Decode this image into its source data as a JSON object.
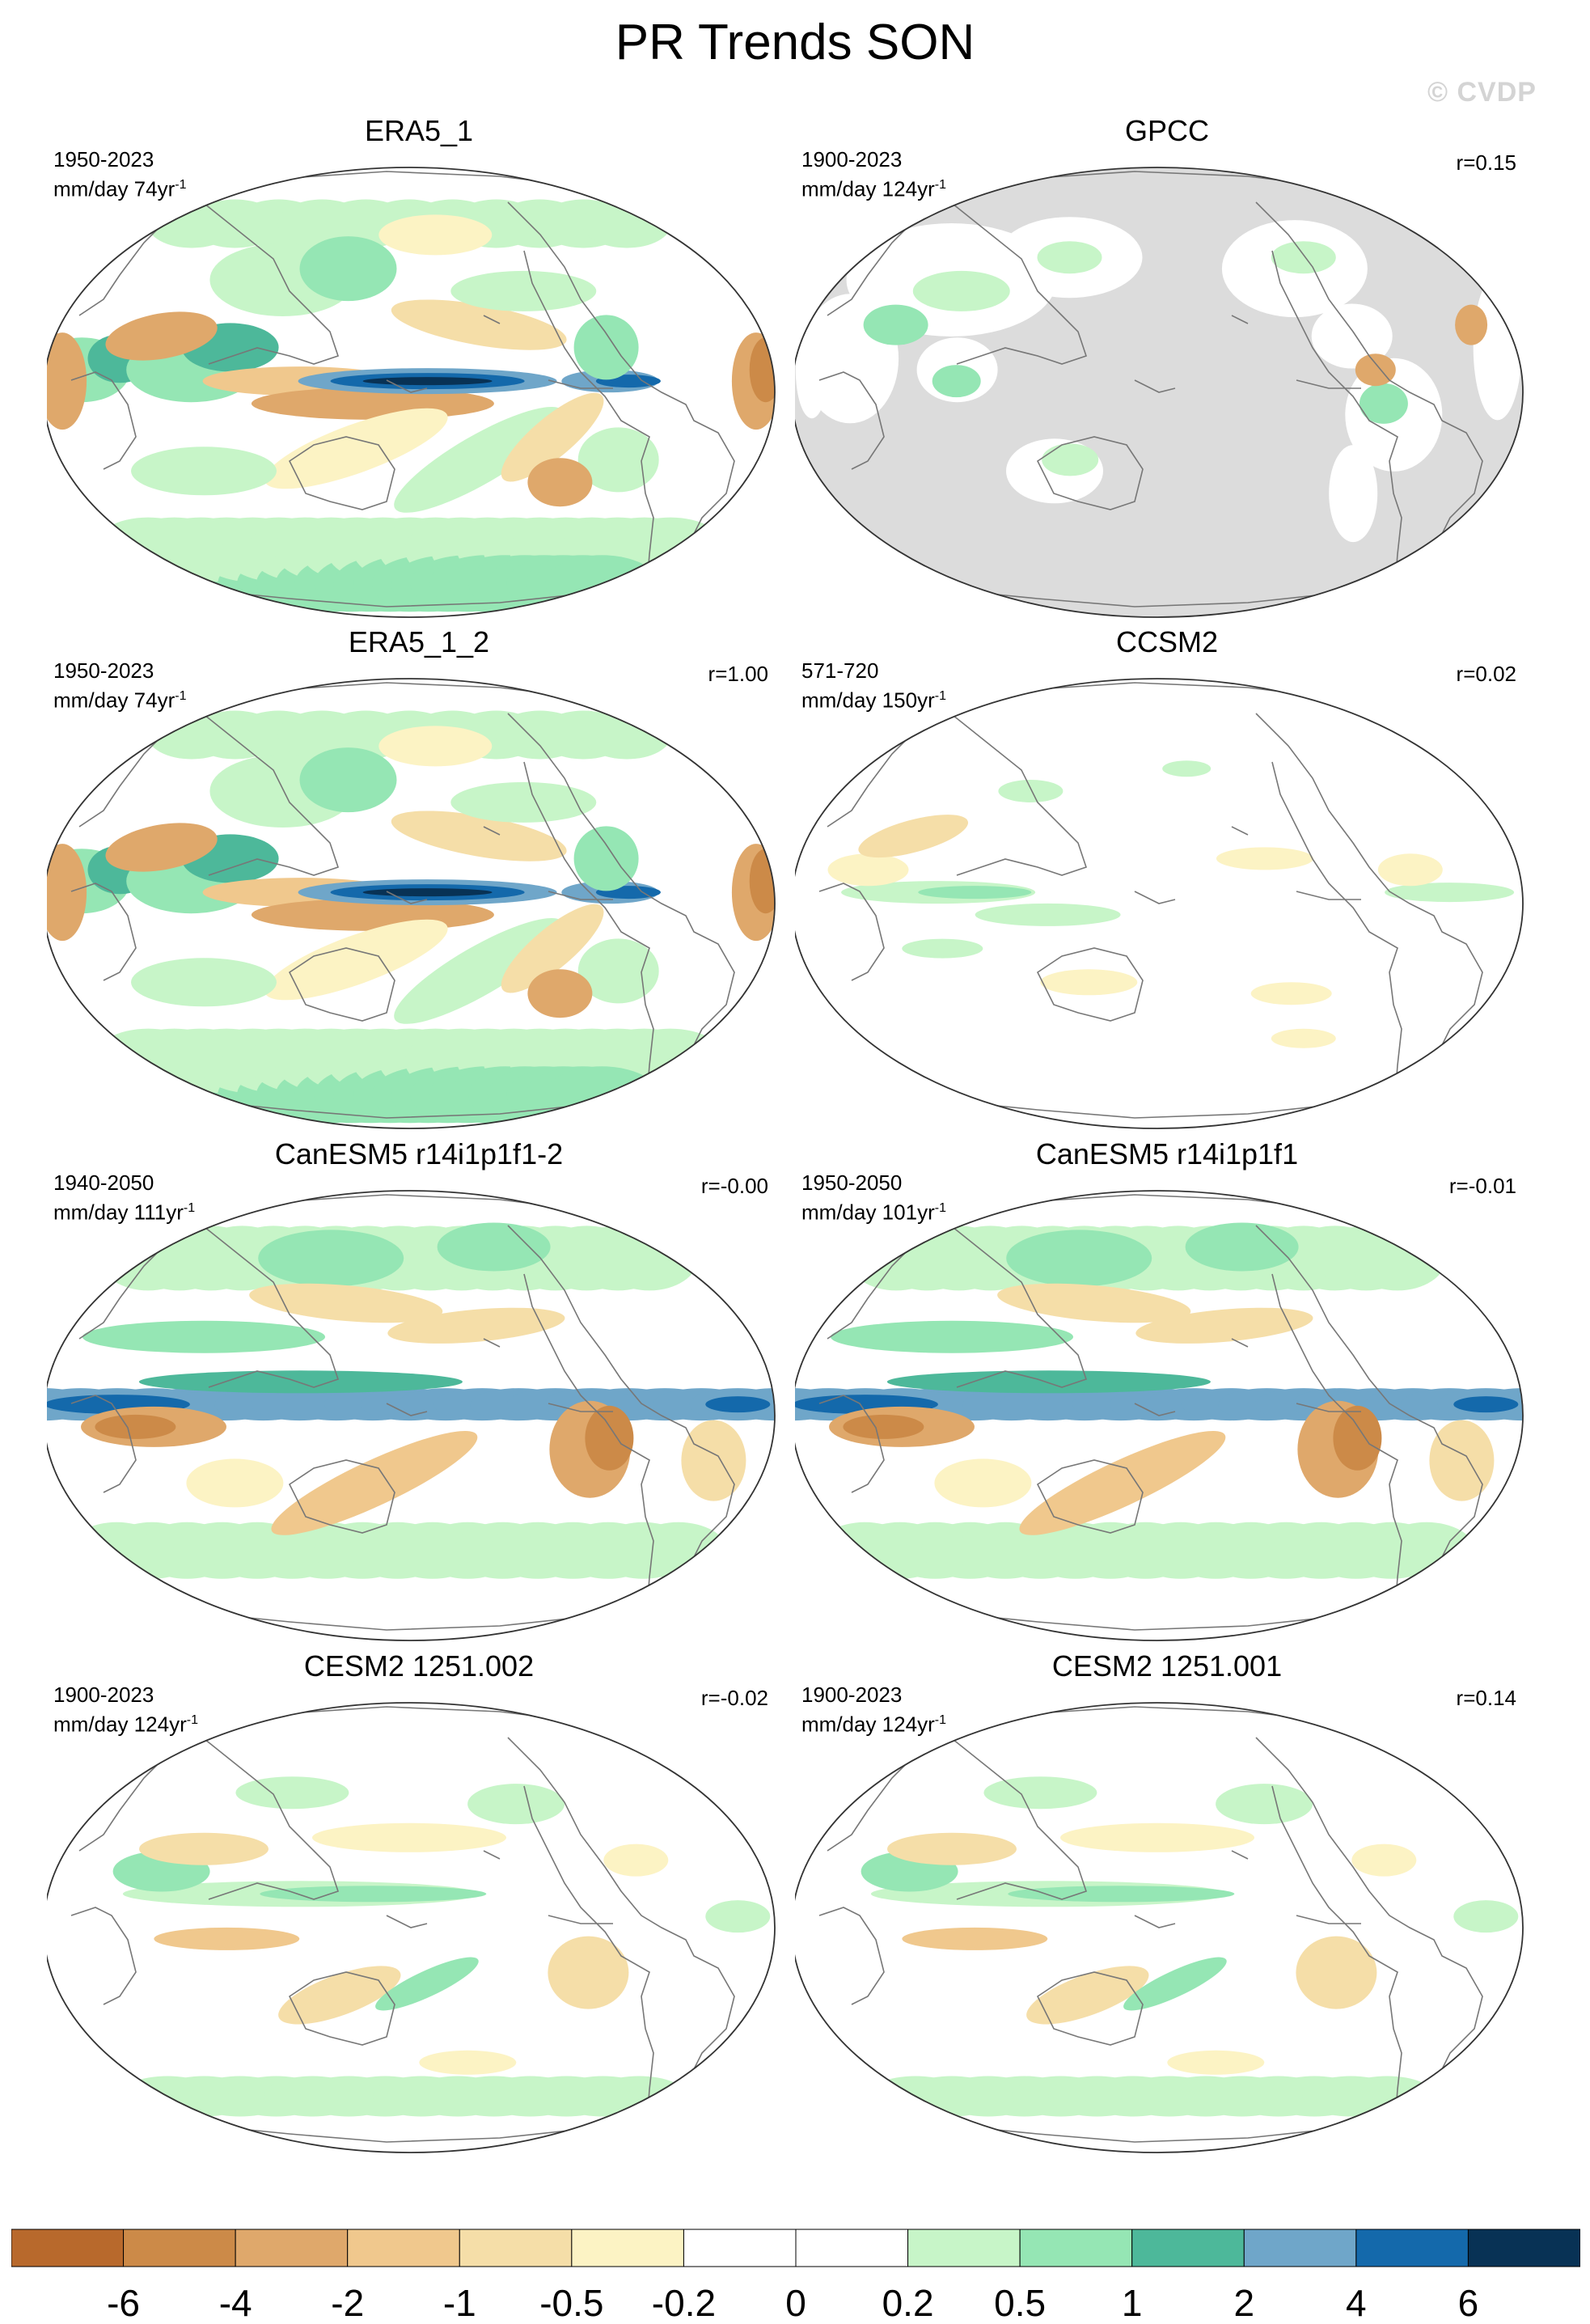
{
  "title": "PR Trends SON",
  "watermark": "© CVDP",
  "panels": [
    {
      "title": "ERA5_1",
      "period": "1950-2023",
      "units": "mm/day 74yr",
      "r": "",
      "style": "era5",
      "gray_ocean": false
    },
    {
      "title": "GPCC",
      "period": "1900-2023",
      "units": "mm/day 124yr",
      "r": "r=0.15",
      "style": "gpcc",
      "gray_ocean": true
    },
    {
      "title": "ERA5_1_2",
      "period": "1950-2023",
      "units": "mm/day 74yr",
      "r": "r=1.00",
      "style": "era5",
      "gray_ocean": false
    },
    {
      "title": "CCSM2",
      "period": "571-720",
      "units": "mm/day 150yr",
      "r": "r=0.02",
      "style": "ccsm",
      "gray_ocean": false
    },
    {
      "title": "CanESM5 r14i1p1f1-2",
      "period": "1940-2050",
      "units": "mm/day 111yr",
      "r": "r=-0.00",
      "style": "canesm",
      "gray_ocean": false
    },
    {
      "title": "CanESM5 r14i1p1f1",
      "period": "1950-2050",
      "units": "mm/day 101yr",
      "r": "r=-0.01",
      "style": "canesm",
      "gray_ocean": false
    },
    {
      "title": "CESM2 1251.002",
      "period": "1900-2023",
      "units": "mm/day 124yr",
      "r": "r=-0.02",
      "style": "cesm",
      "gray_ocean": false
    },
    {
      "title": "CESM2 1251.001",
      "period": "1900-2023",
      "units": "mm/day 124yr",
      "r": "r=0.14",
      "style": "cesm",
      "gray_ocean": false
    }
  ],
  "colorbar": {
    "colors": [
      "#b8692c",
      "#cc8a48",
      "#dfa86b",
      "#f0c88d",
      "#f5dea8",
      "#fcf3c4",
      "#ffffff",
      "#ffffff",
      "#c7f5c8",
      "#95e6b4",
      "#4db89a",
      "#6fa6c9",
      "#1469ab",
      "#083255"
    ],
    "labels": [
      "-6",
      "-4",
      "-2",
      "-1",
      "-0.5",
      "-0.2",
      "0",
      "0.2",
      "0.5",
      "1",
      "2",
      "4",
      "6"
    ]
  }
}
